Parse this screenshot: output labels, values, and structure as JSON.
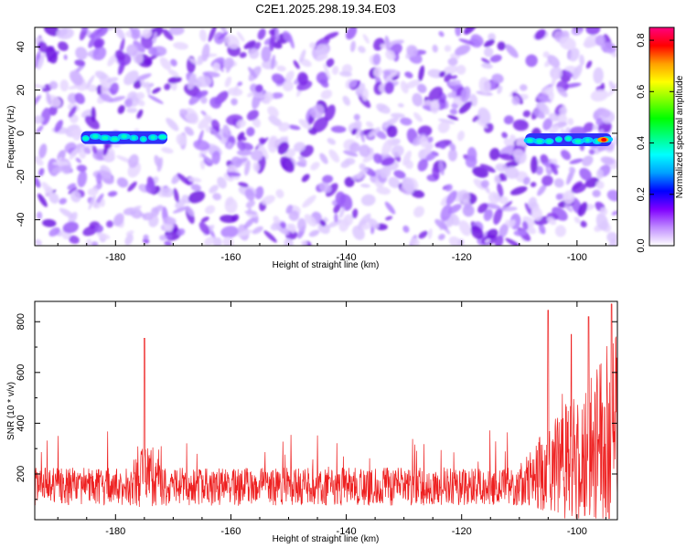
{
  "title": "C2E1.2025.298.19.34.E03",
  "chart_data": [
    {
      "type": "heatmap",
      "xlabel": "Height of straight line (km)",
      "ylabel": "Frequency (Hz)",
      "xlim": [
        -194,
        -93
      ],
      "ylim": [
        -52,
        49
      ],
      "x_ticks": [
        -180,
        -160,
        -140,
        -120,
        -100
      ],
      "y_ticks": [
        -40,
        -20,
        0,
        20,
        40
      ],
      "colorbar": {
        "label": "Normalized spectral amplitude",
        "range": [
          0.0,
          0.85
        ],
        "ticks": [
          0.0,
          0.2,
          0.4,
          0.6,
          0.8
        ],
        "colors": [
          "#ffffff",
          "#c08cff",
          "#8000ff",
          "#0000ff",
          "#00a0ff",
          "#00ffff",
          "#00ff80",
          "#00ff00",
          "#80ff00",
          "#ffff00",
          "#ffa000",
          "#ff0000",
          "#ff0080"
        ]
      },
      "features": [
        {
          "x_start": -186,
          "x_end": -171,
          "freq": -2,
          "peak_amplitude": 0.35
        },
        {
          "x_start": -109,
          "x_end": -94,
          "freq": -3,
          "peak_amplitude": 0.85
        }
      ]
    },
    {
      "type": "line",
      "xlabel": "Height of straight line (km)",
      "ylabel": "SNR (10 * v/v)",
      "xlim": [
        -194,
        -93
      ],
      "ylim": [
        20,
        880
      ],
      "x_ticks": [
        -180,
        -160,
        -140,
        -120,
        -100
      ],
      "y_ticks": [
        200,
        400,
        600,
        800
      ],
      "color": "#ee2020",
      "baseline_mean": 150,
      "key_points": [
        {
          "x": -175,
          "y": 735
        },
        {
          "x": -105,
          "y": 845
        },
        {
          "x": -101,
          "y": 750
        },
        {
          "x": -98,
          "y": 820
        },
        {
          "x": -94,
          "y": 870
        }
      ]
    }
  ]
}
